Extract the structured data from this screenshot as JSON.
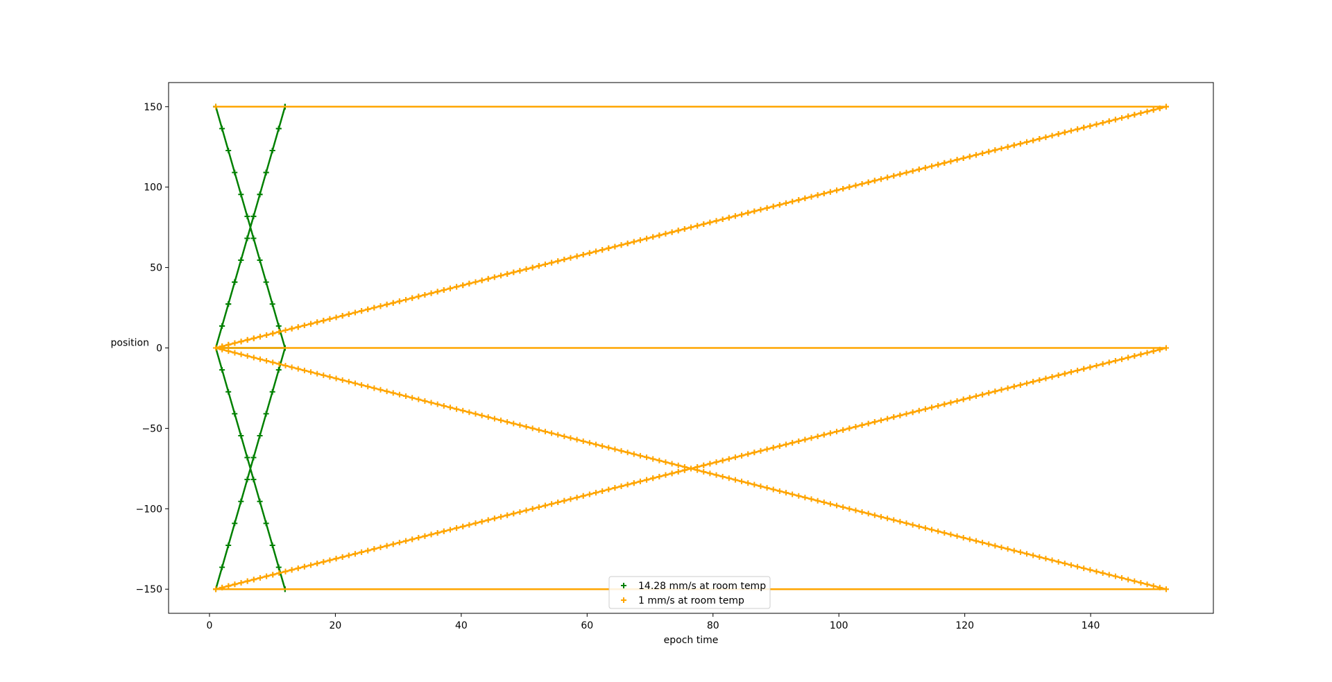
{
  "chart_data": {
    "type": "line",
    "title": "",
    "xlabel": "epoch time",
    "ylabel": "position",
    "xlim": [
      -6.5,
      159.5
    ],
    "ylim": [
      -165,
      165
    ],
    "xticks": [
      0,
      20,
      40,
      60,
      80,
      100,
      120,
      140
    ],
    "yticks": [
      150,
      100,
      50,
      0,
      -50,
      -100,
      -150
    ],
    "xtick_labels": [
      "0",
      "20",
      "40",
      "60",
      "80",
      "100",
      "120",
      "140"
    ],
    "ytick_labels": [
      "150",
      "100",
      "50",
      "0",
      "−50",
      "−100",
      "−150"
    ],
    "grid": false,
    "legend": "lower-center",
    "marker": "+",
    "series": [
      {
        "name": "14.28 mm/s at room temp",
        "color": "#008000",
        "x": [
          1,
          12,
          1,
          12,
          1,
          12,
          1,
          12,
          1,
          12
        ],
        "y": [
          0,
          150,
          150,
          0,
          0,
          -150,
          -150,
          0,
          0,
          150
        ],
        "marker_points": 12
      },
      {
        "name": "1 mm/s at room temp",
        "color": "#ffa500",
        "x": [
          1,
          152,
          1,
          152,
          1,
          152,
          1,
          152,
          1,
          152,
          1
        ],
        "y": [
          150,
          150,
          0,
          0,
          -150,
          -150,
          0,
          150,
          0,
          0,
          -150
        ],
        "marker_points": 151
      }
    ]
  }
}
